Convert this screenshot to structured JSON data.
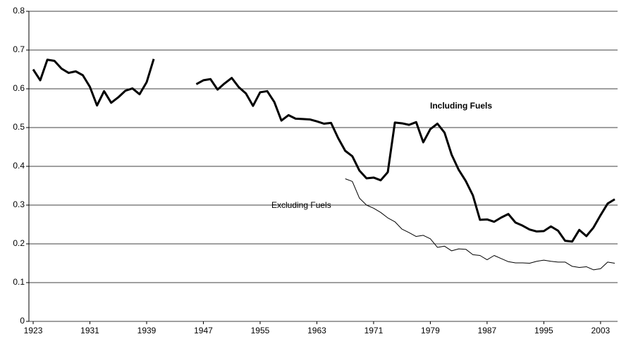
{
  "chart_data": {
    "type": "line",
    "x": [
      1923,
      1924,
      1925,
      1926,
      1927,
      1928,
      1929,
      1930,
      1931,
      1932,
      1933,
      1934,
      1935,
      1936,
      1937,
      1938,
      1939,
      1940,
      1941,
      1942,
      1943,
      1944,
      1945,
      1946,
      1947,
      1948,
      1949,
      1950,
      1951,
      1952,
      1953,
      1954,
      1955,
      1956,
      1957,
      1958,
      1959,
      1960,
      1961,
      1962,
      1963,
      1964,
      1965,
      1966,
      1967,
      1968,
      1969,
      1970,
      1971,
      1972,
      1973,
      1974,
      1975,
      1976,
      1977,
      1978,
      1979,
      1980,
      1981,
      1982,
      1983,
      1984,
      1985,
      1986,
      1987,
      1988,
      1989,
      1990,
      1991,
      1992,
      1993,
      1994,
      1995,
      1996,
      1997,
      1998,
      1999,
      2000,
      2001,
      2002,
      2003,
      2004,
      2005
    ],
    "series": [
      {
        "name": "Including Fuels",
        "color": "#000000",
        "values": [
          0.65,
          0.622,
          0.675,
          0.672,
          0.652,
          0.641,
          0.645,
          0.635,
          0.605,
          0.557,
          0.594,
          0.564,
          0.578,
          0.595,
          0.601,
          0.586,
          0.617,
          0.677,
          null,
          null,
          null,
          null,
          null,
          0.612,
          0.622,
          0.625,
          0.598,
          0.614,
          0.628,
          0.604,
          0.588,
          0.556,
          0.591,
          0.594,
          0.566,
          0.518,
          0.532,
          0.523,
          0.522,
          0.521,
          0.516,
          0.51,
          0.512,
          0.473,
          0.44,
          0.426,
          0.389,
          0.369,
          0.371,
          0.364,
          0.385,
          0.513,
          0.511,
          0.507,
          0.514,
          0.462,
          0.496,
          0.51,
          0.487,
          0.43,
          0.391,
          0.362,
          0.325,
          0.262,
          0.263,
          0.257,
          0.268,
          0.277,
          0.255,
          0.247,
          0.237,
          0.232,
          0.233,
          0.245,
          0.234,
          0.208,
          0.206,
          0.236,
          0.22,
          0.242,
          0.274,
          0.304,
          0.315
        ]
      },
      {
        "name": "Excluding Fuels",
        "color": "#000000",
        "values": [
          null,
          null,
          null,
          null,
          null,
          null,
          null,
          null,
          null,
          null,
          null,
          null,
          null,
          null,
          null,
          null,
          null,
          null,
          null,
          null,
          null,
          null,
          null,
          null,
          null,
          null,
          null,
          null,
          null,
          null,
          null,
          null,
          null,
          null,
          null,
          null,
          null,
          null,
          null,
          null,
          null,
          null,
          null,
          null,
          0.368,
          0.361,
          0.318,
          0.3,
          0.292,
          0.281,
          0.267,
          0.257,
          0.238,
          0.229,
          0.219,
          0.222,
          0.213,
          0.191,
          0.194,
          0.182,
          0.187,
          0.186,
          0.172,
          0.17,
          0.159,
          0.17,
          0.162,
          0.154,
          0.151,
          0.151,
          0.15,
          0.155,
          0.158,
          0.155,
          0.153,
          0.153,
          0.142,
          0.139,
          0.141,
          0.133,
          0.136,
          0.153,
          0.15
        ]
      }
    ],
    "xlim": [
      1922.4,
      2005.4
    ],
    "xticks": [
      1923,
      1931,
      1939,
      1947,
      1955,
      1963,
      1971,
      1979,
      1987,
      1995,
      2003
    ],
    "ylim": [
      0,
      0.8
    ],
    "yticks": [
      0,
      0.1,
      0.2,
      0.3,
      0.4,
      0.5,
      0.6,
      0.7,
      0.8
    ],
    "grid": true
  }
}
